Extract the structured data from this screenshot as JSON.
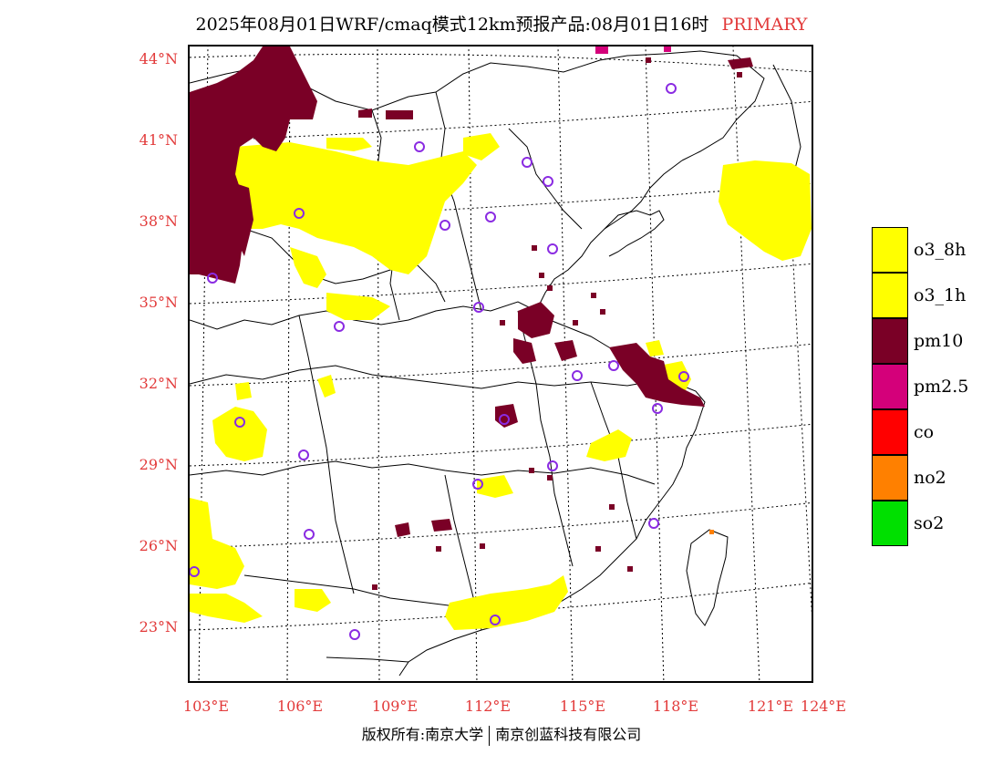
{
  "header": {
    "title": "2025年08月01日WRF/cmaq模式12km预报产品:08月01日16时",
    "product_type": "PRIMARY"
  },
  "axes": {
    "lat_labels": [
      "44°N",
      "41°N",
      "38°N",
      "35°N",
      "32°N",
      "29°N",
      "26°N",
      "23°N"
    ],
    "lon_labels": [
      "103°E",
      "106°E",
      "109°E",
      "112°E",
      "115°E",
      "118°E",
      "121°E",
      "124°E"
    ]
  },
  "legend": {
    "items": [
      {
        "label": "o3_8h",
        "color": "#ffff00"
      },
      {
        "label": "o3_1h",
        "color": "#ffff00"
      },
      {
        "label": "pm10",
        "color": "#7a0026"
      },
      {
        "label": "pm2.5",
        "color": "#d4007a"
      },
      {
        "label": "co",
        "color": "#ff0000"
      },
      {
        "label": "no2",
        "color": "#ff8000"
      },
      {
        "label": "so2",
        "color": "#00e000"
      }
    ]
  },
  "footer": {
    "copyright_left": "版权所有:南京大学",
    "copyright_right": "南京创蓝科技有限公司"
  }
}
